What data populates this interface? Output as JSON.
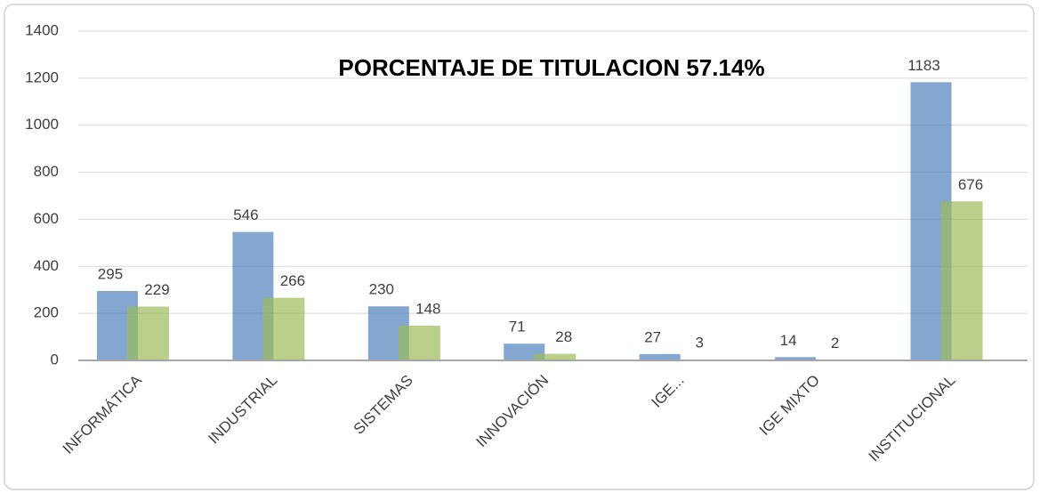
{
  "chart_data": {
    "type": "bar",
    "title": "PORCENTAJE DE TITULACION 57.14%",
    "categories": [
      "INFORMÁTICA",
      "INDUSTRIAL",
      "SISTEMAS",
      "INNOVACIÓN",
      "IGE...",
      "IGE MIXTO",
      "INSTITUCIONAL"
    ],
    "series": [
      {
        "color": "#4f81bd",
        "values": [
          295,
          546,
          230,
          71,
          27,
          14,
          1183
        ]
      },
      {
        "color": "#9bbb59",
        "values": [
          229,
          266,
          148,
          28,
          3,
          2,
          676
        ]
      }
    ],
    "ylim": [
      0,
      1400
    ],
    "yticks": [
      0,
      200,
      400,
      600,
      800,
      1000,
      1200,
      1400
    ],
    "grid": true
  }
}
